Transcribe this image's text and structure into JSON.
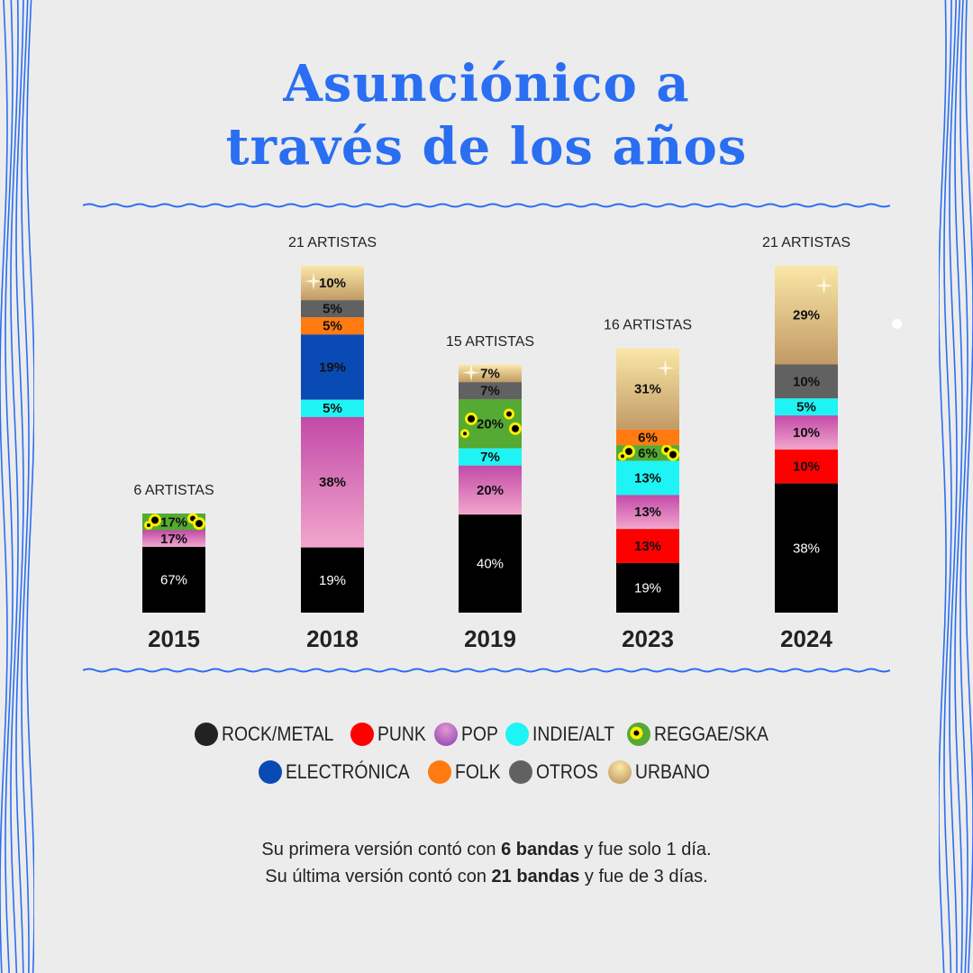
{
  "title": {
    "line1": "Asunciónico a",
    "line2": "través de los años"
  },
  "colors": {
    "accent": "#2a6ef2",
    "background": "#ececec",
    "ROCK/METAL": "#000000",
    "PUNK": "#ff0000",
    "POP": "#e08ec8",
    "INDIE/ALT": "#1ff4f4",
    "REGGAE/SKA": "#55aa33",
    "ELECTRÓNICA": "#0a4ab4",
    "FOLK": "#ff7a10",
    "OTROS": "#616161",
    "URBANO": "#cfb07c"
  },
  "chart_data": {
    "type": "bar",
    "stacked": true,
    "categories": [
      "2015",
      "2018",
      "2019",
      "2023",
      "2024"
    ],
    "totals_labels": [
      "6 ARTISTAS",
      "21 ARTISTAS",
      "15 ARTISTAS",
      "16 ARTISTAS",
      "21 ARTISTAS"
    ],
    "series": [
      {
        "name": "ROCK/METAL",
        "values": [
          67,
          19,
          40,
          19,
          38
        ]
      },
      {
        "name": "PUNK",
        "values": [
          0,
          0,
          0,
          13,
          10
        ]
      },
      {
        "name": "POP",
        "values": [
          17,
          38,
          20,
          13,
          10
        ]
      },
      {
        "name": "INDIE/ALT",
        "values": [
          0,
          5,
          7,
          13,
          5
        ]
      },
      {
        "name": "REGGAE/SKA",
        "values": [
          17,
          0,
          20,
          6,
          0
        ]
      },
      {
        "name": "ELECTRÓNICA",
        "values": [
          0,
          19,
          0,
          0,
          0
        ]
      },
      {
        "name": "FOLK",
        "values": [
          0,
          5,
          0,
          6,
          0
        ]
      },
      {
        "name": "OTROS",
        "values": [
          0,
          5,
          7,
          0,
          10
        ]
      },
      {
        "name": "URBANO",
        "values": [
          0,
          10,
          7,
          31,
          29
        ]
      }
    ],
    "data_labels": [
      [
        "67%",
        "",
        "17%",
        "",
        "17%",
        "",
        "",
        "",
        ""
      ],
      [
        "19%",
        "",
        "38%",
        "5%",
        "",
        "19%",
        "5%",
        "5%",
        "10%"
      ],
      [
        "40%",
        "",
        "20%",
        "7%",
        "20%",
        "",
        "",
        "7%",
        "7%"
      ],
      [
        "19%",
        "13%",
        "13%",
        "13%",
        "6%",
        "",
        "6%",
        "",
        "31%"
      ],
      [
        "38%",
        "10%",
        "10%",
        "5%",
        "",
        "",
        "",
        "10%",
        "29%"
      ]
    ],
    "legend_placement": "bottom",
    "grid": false,
    "xlabel": "",
    "ylabel": ""
  },
  "legend": {
    "row1": [
      "ROCK/METAL",
      "PUNK",
      "POP",
      "INDIE/ALT",
      "REGGAE/SKA"
    ],
    "row2": [
      "ELECTRÓNICA",
      "FOLK",
      "OTROS",
      "URBANO"
    ]
  },
  "footer": {
    "l1a": "Su primera versión contó con ",
    "l1b": "6 bandas",
    "l1c": " y fue solo 1 día.",
    "l2a": "Su última versión contó con ",
    "l2b": "21 bandas",
    "l2c": " y fue de 3 días."
  }
}
